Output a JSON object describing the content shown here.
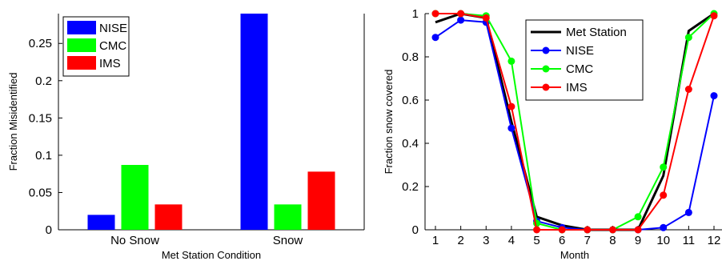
{
  "chart_data": [
    {
      "type": "bar",
      "xlabel": "Met Station Condition",
      "ylabel": "Fraction Misidentified",
      "categories": [
        "No Snow",
        "Snow"
      ],
      "series": [
        {
          "name": "NISE",
          "color": "#0000ff",
          "values": [
            0.02,
            0.29
          ]
        },
        {
          "name": "CMC",
          "color": "#00ff00",
          "values": [
            0.087,
            0.034
          ]
        },
        {
          "name": "IMS",
          "color": "#ff0000",
          "values": [
            0.034,
            0.078
          ]
        }
      ],
      "ylim": [
        0,
        0.29
      ],
      "yticks": [
        0,
        0.05,
        0.1,
        0.15,
        0.2,
        0.25
      ],
      "ytick_labels": [
        "0",
        "0.05",
        "0.1",
        "0.15",
        "0.2",
        "0.25"
      ],
      "legend_position": "top-left",
      "grid": false
    },
    {
      "type": "line",
      "xlabel": "Month",
      "ylabel": "Fraction snow covered",
      "x": [
        1,
        2,
        3,
        4,
        5,
        6,
        7,
        8,
        9,
        10,
        11,
        12
      ],
      "series": [
        {
          "name": "Met Station",
          "color": "#000000",
          "marker": "none",
          "values": [
            0.96,
            1.0,
            0.98,
            0.5,
            0.06,
            0.02,
            0.0,
            0.0,
            0.0,
            0.25,
            0.92,
            1.0
          ]
        },
        {
          "name": "NISE",
          "color": "#0000ff",
          "marker": "circle",
          "values": [
            0.89,
            0.97,
            0.96,
            0.47,
            0.04,
            0.01,
            0.0,
            0.0,
            0.0,
            0.01,
            0.08,
            0.62
          ]
        },
        {
          "name": "CMC",
          "color": "#00ff00",
          "marker": "circle",
          "values": [
            1.0,
            1.0,
            0.99,
            0.78,
            0.03,
            0.0,
            0.0,
            0.0,
            0.06,
            0.29,
            0.89,
            1.0
          ]
        },
        {
          "name": "IMS",
          "color": "#ff0000",
          "marker": "circle",
          "values": [
            1.0,
            1.0,
            0.98,
            0.57,
            0.0,
            0.0,
            0.0,
            0.0,
            0.0,
            0.16,
            0.65,
            0.99
          ]
        }
      ],
      "xlim": [
        1,
        12
      ],
      "ylim": [
        0,
        1
      ],
      "xtick_labels": [
        "1",
        "2",
        "3",
        "4",
        "5",
        "6",
        "7",
        "8",
        "9",
        "10",
        "11",
        "12"
      ],
      "yticks": [
        0,
        0.2,
        0.4,
        0.6,
        0.8,
        1
      ],
      "ytick_labels": [
        "0",
        "0.2",
        "0.4",
        "0.6",
        "0.8",
        "1"
      ],
      "legend_position": "top-right",
      "grid": false
    }
  ]
}
